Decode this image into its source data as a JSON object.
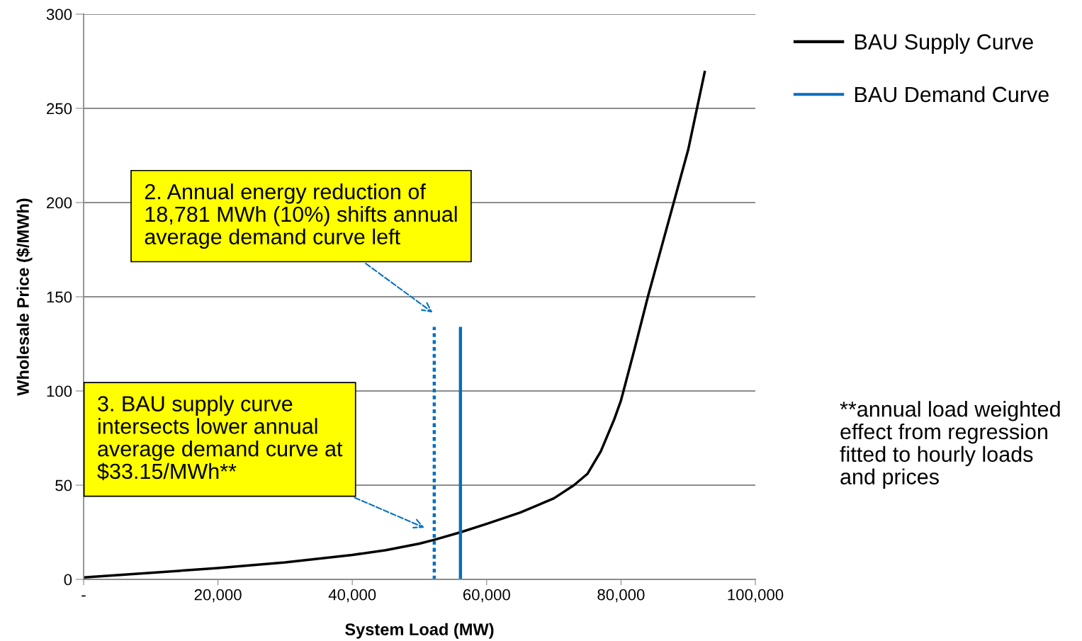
{
  "chart_data": {
    "type": "line",
    "xlabel": "System Load (MW)",
    "ylabel": "Wholesale Price ($/MWh)",
    "xlim": [
      0,
      100000
    ],
    "xticks": [
      {
        "value": 0,
        "label": "-"
      },
      {
        "value": 20000,
        "label": "20,000"
      },
      {
        "value": 40000,
        "label": "40,000"
      },
      {
        "value": 60000,
        "label": "60,000"
      },
      {
        "value": 80000,
        "label": "80,000"
      },
      {
        "value": 100000,
        "label": "100,000"
      }
    ],
    "ylim": [
      0,
      300
    ],
    "yticks": [
      0,
      50,
      100,
      150,
      200,
      250,
      300
    ],
    "grid": "y",
    "legend": "top right",
    "marker": "none",
    "series": [
      {
        "name": "BAU Supply Curve",
        "color": "#000000",
        "line_style": "solid",
        "x": [
          0,
          10000,
          20000,
          30000,
          40000,
          45000,
          50000,
          52200,
          56100,
          60000,
          65000,
          70000,
          73000,
          75000,
          77000,
          79000,
          80000,
          82000,
          84000,
          86000,
          88000,
          90000,
          92500
        ],
        "values": [
          1,
          3.5,
          6,
          9,
          13,
          15.5,
          19,
          21,
          25,
          29.5,
          35.5,
          43,
          50,
          56,
          68,
          85,
          95,
          122,
          150,
          176,
          202,
          228,
          270
        ]
      },
      {
        "name": "BAU Demand Curve",
        "color": "#0070c0",
        "line_style": "solid",
        "x": [
          56100,
          56100
        ],
        "values": [
          0,
          134
        ]
      },
      {
        "color": "#0070c0",
        "line_style": "dotted",
        "x": [
          52200,
          52200
        ],
        "values": [
          0,
          134
        ]
      }
    ],
    "annotations": [
      "2. Annual energy reduction of\n18,781 MWh (10%) shifts annual\naverage demand curve left",
      "3. BAU supply curve\nintersects lower annual\naverage demand curve at\n$33.15/MWh**",
      "**annual load weighted\neffect from regression\nfitted to hourly loads\nand prices"
    ]
  }
}
